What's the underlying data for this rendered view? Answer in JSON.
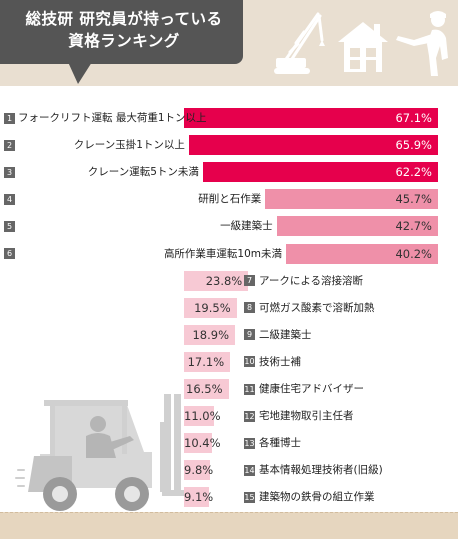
{
  "header": {
    "title_line1": "総技研 研究員が持っている",
    "title_line2": "資格ランキング",
    "icons": [
      "crane-icon",
      "house-icon",
      "worker-icon"
    ]
  },
  "illustration": "forklift-icon",
  "colors": {
    "rank_top": "#e6004c",
    "rank_mid": "#ef90a9",
    "rank_low": "#f7c9d4",
    "header_bubble": "#555555",
    "header_band": "#e9dfd1"
  },
  "chart_data": {
    "type": "bar",
    "orientation": "horizontal",
    "unit": "%",
    "xlim": [
      0,
      70
    ],
    "categories": [
      "フォークリフト運転 最大荷重1トン以上",
      "クレーン玉掛1トン以上",
      "クレーン運転5トン未満",
      "研削と石作業",
      "一級建築士",
      "高所作業車運転10m未満",
      "アークによる溶接溶断",
      "可燃ガス酸素で溶断加熱",
      "二級建築士",
      "技術士補",
      "健康住宅アドバイザー",
      "宅地建物取引主任者",
      "各種博士",
      "基本情報処理技術者(旧級)",
      "建築物の鉄骨の組立作業"
    ],
    "ranks": [
      "1",
      "2",
      "3",
      "4",
      "5",
      "6",
      "7",
      "8",
      "9",
      "10",
      "11",
      "12",
      "13",
      "14",
      "15"
    ],
    "values": [
      67.1,
      65.9,
      62.2,
      45.7,
      42.7,
      40.2,
      23.8,
      19.5,
      18.9,
      17.1,
      16.5,
      11.0,
      10.4,
      9.8,
      9.1
    ],
    "value_labels": [
      "67.1%",
      "65.9%",
      "62.2%",
      "45.7%",
      "42.7%",
      "40.2%",
      "23.8%",
      "19.5%",
      "18.9%",
      "17.1%",
      "16.5%",
      "11.0%",
      "10.4%",
      "9.8%",
      "9.1%"
    ]
  }
}
